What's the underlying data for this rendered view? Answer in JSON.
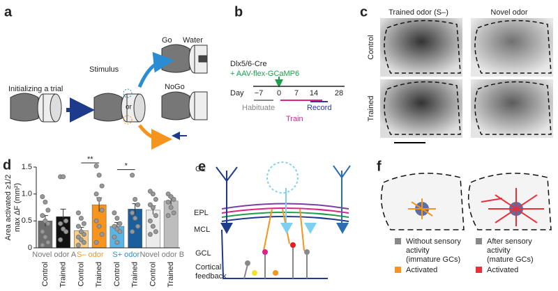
{
  "panels": {
    "a": {
      "label": "a",
      "init": "Initializing a trial",
      "stimulus": "Stimulus",
      "or": "or",
      "go": "Go",
      "water": "Water",
      "nogo": "NoGo"
    },
    "b": {
      "label": "b",
      "line1": "Dlx5/6-Cre",
      "line2": "+ AAV-flex-GCaMP6",
      "day": "Day",
      "days": [
        "−7",
        "0",
        "7",
        "14",
        "28"
      ],
      "habituate": "Habituate",
      "record": "Record",
      "train": "Train"
    },
    "c": {
      "label": "c",
      "col1": "Trained odor (S–)",
      "col2": "Novel odor",
      "row1": "Control",
      "row2": "Trained"
    },
    "e": {
      "label": "e",
      "layers": [
        "GL",
        "EPL",
        "MCL",
        "GCL"
      ],
      "feedback": [
        "Cortical",
        "feedback"
      ]
    },
    "f": {
      "label": "f",
      "left": [
        "Without sensory",
        "activity",
        "(immature GCs)"
      ],
      "left_act": "Activated",
      "right": [
        "After sensory",
        "activity",
        "(mature GCs)"
      ],
      "right_act": "Activated"
    },
    "d": {
      "label": "d"
    }
  },
  "chart_data": {
    "type": "bar",
    "ylabel": [
      "Area activated ≥1/2",
      "max ΔF (mm²)"
    ],
    "categories": [
      "Control",
      "Trained",
      "Control",
      "Trained",
      "Control",
      "Trained",
      "Control",
      "Trained"
    ],
    "values": [
      0.5,
      0.58,
      0.32,
      0.8,
      0.4,
      0.72,
      0.7,
      0.87
    ],
    "errors": [
      0.1,
      0.14,
      0.06,
      0.13,
      0.07,
      0.1,
      0.08,
      0.07
    ],
    "colors": [
      "#6d6d6d",
      "#111111",
      "#f9cd86",
      "#f7941d",
      "#5ab4e5",
      "#1b5e9e",
      "#ececec",
      "#bdbdbd"
    ],
    "groups": [
      {
        "label": "Novel odor A",
        "color": "#777777"
      },
      {
        "label": "S– odor",
        "color": "#f7941d",
        "significance": "**"
      },
      {
        "label": "S+ odor",
        "color": "#2f8fcf",
        "significance": "*"
      },
      {
        "label": "Novel odor B",
        "color": "#777777"
      }
    ],
    "points": [
      [
        0.95,
        0.85,
        0.7,
        0.6,
        0.5,
        0.45,
        0.3,
        0.2,
        0.1,
        0.05
      ],
      [
        1.32,
        1.32,
        0.5,
        0.45,
        0.35,
        0.3,
        0.15
      ],
      [
        0.65,
        0.55,
        0.45,
        0.4,
        0.3,
        0.25,
        0.2,
        0.15,
        0.1,
        0.05
      ],
      [
        1.52,
        1.35,
        1.15,
        1.0,
        0.9,
        0.7,
        0.5,
        0.4,
        0.25,
        0.1
      ],
      [
        0.65,
        0.55,
        0.45,
        0.4,
        0.35,
        0.3,
        0.2,
        0.1
      ],
      [
        1.35,
        0.9,
        0.8,
        0.65,
        0.55,
        0.4,
        0.3
      ],
      [
        1.05,
        1.0,
        0.9,
        0.8,
        0.75,
        0.6,
        0.5,
        0.4,
        0.3,
        0.25
      ],
      [
        1.0,
        0.95,
        0.9,
        0.85,
        0.75,
        0.65,
        0.6
      ]
    ],
    "ylim": [
      0,
      1.5
    ],
    "yticks": [
      0,
      0.5,
      {
        "value": 1,
        "label": "1.0"
      },
      1.5
    ]
  }
}
